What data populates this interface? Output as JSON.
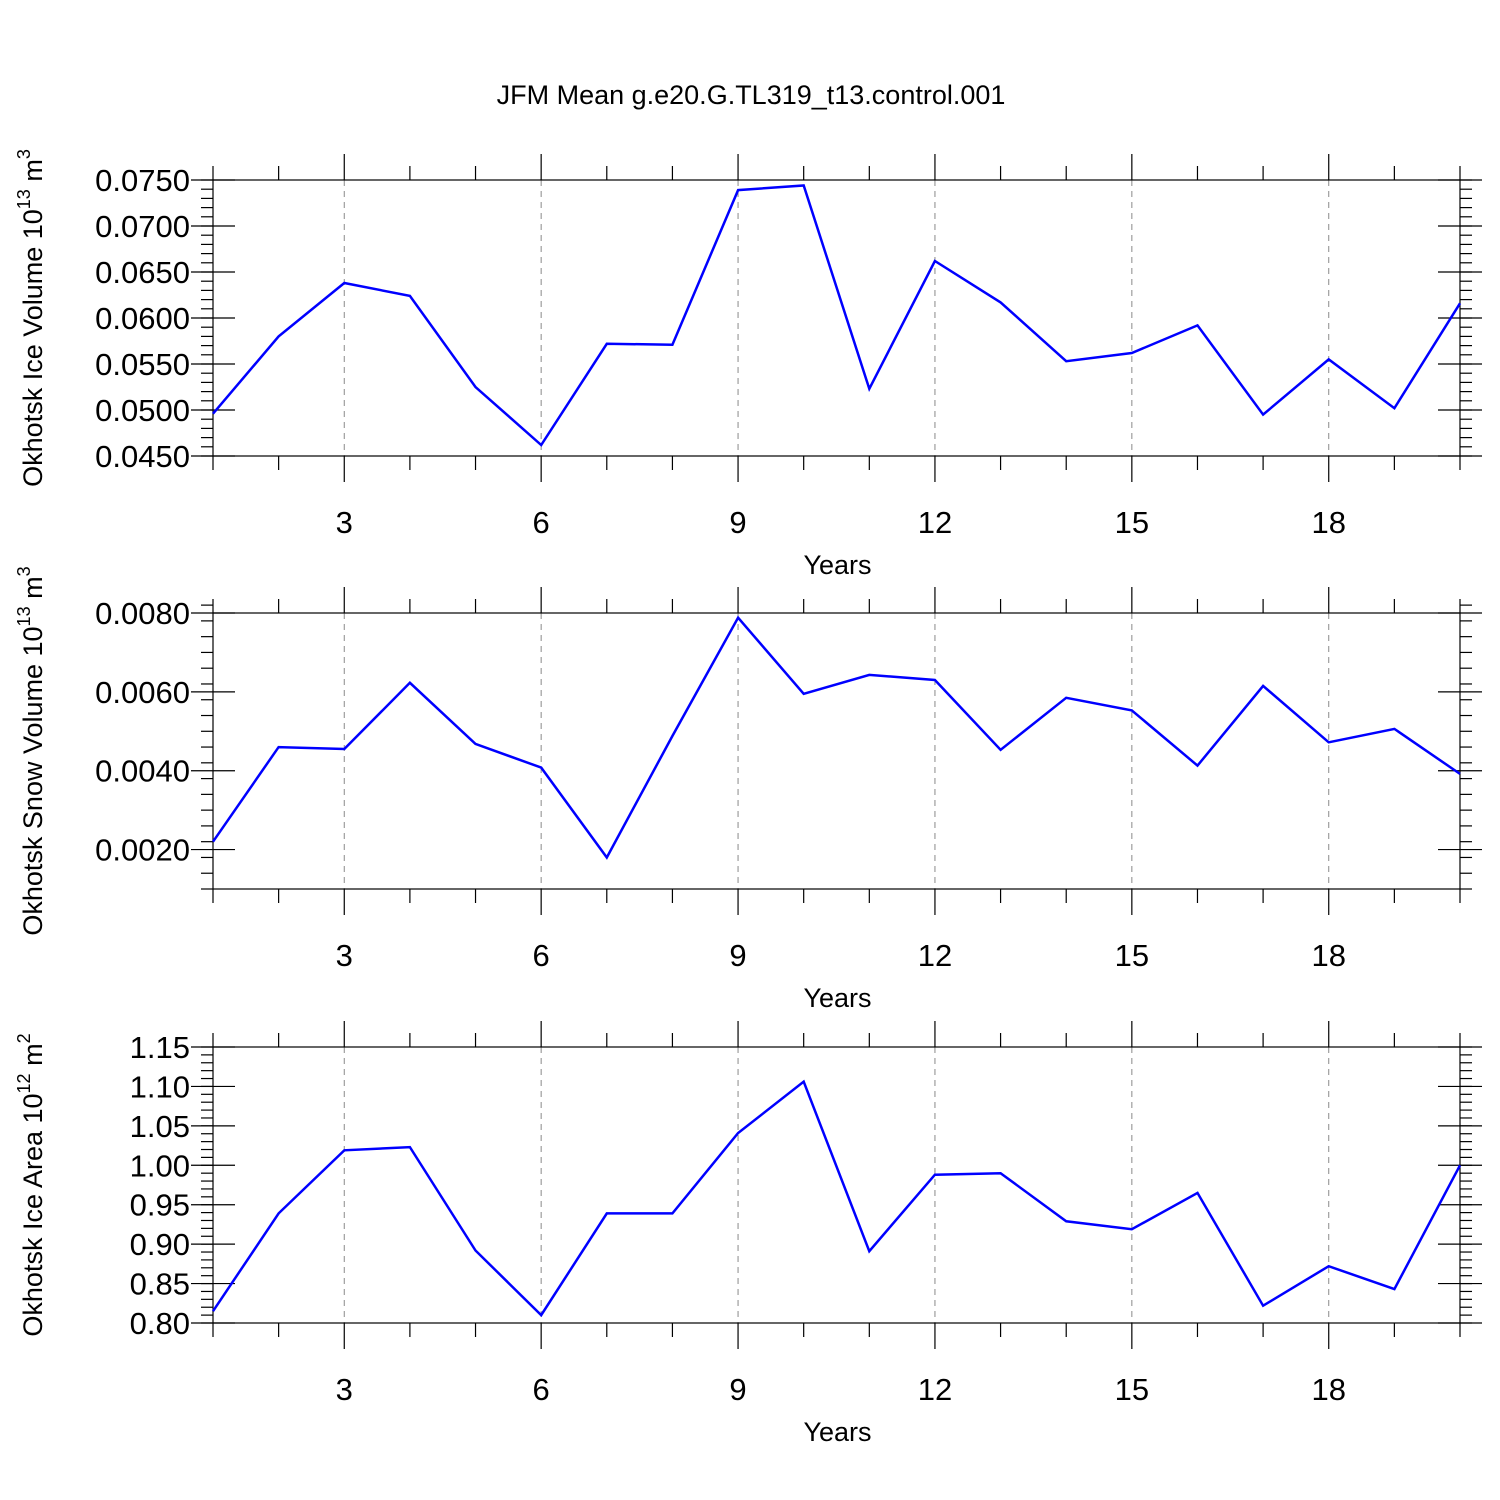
{
  "title": "JFM Mean g.e20.G.TL319_t13.control.001",
  "line_color": "#0000ff",
  "chart_data": [
    {
      "type": "line",
      "title": "JFM Mean g.e20.G.TL319_t13.control.001",
      "xlabel": "Years",
      "ylabel": {
        "base": "Okhotsk Ice Volume 10",
        "exp1": "13",
        "unit": " m",
        "exp2": "3"
      },
      "x": [
        1,
        2,
        3,
        4,
        5,
        6,
        7,
        8,
        9,
        10,
        11,
        12,
        13,
        14,
        15,
        16,
        17,
        18,
        19,
        20
      ],
      "values": [
        0.0496,
        0.058,
        0.0638,
        0.0624,
        0.0525,
        0.0462,
        0.0572,
        0.0571,
        0.0739,
        0.0744,
        0.0523,
        0.0662,
        0.0617,
        0.0553,
        0.0562,
        0.0592,
        0.0495,
        0.0555,
        0.0502,
        0.0616
      ],
      "xlim": [
        1,
        20
      ],
      "ylim": [
        0.045,
        0.075
      ],
      "xticks": [
        3,
        6,
        9,
        12,
        15,
        18
      ],
      "xtick_labels": [
        "3",
        "6",
        "9",
        "12",
        "15",
        "18"
      ],
      "yticks": [
        0.045,
        0.05,
        0.055,
        0.06,
        0.065,
        0.07,
        0.075
      ],
      "ytick_labels": [
        "0.0450",
        "0.0500",
        "0.0550",
        "0.0600",
        "0.0650",
        "0.0700",
        "0.0750"
      ],
      "y_minor_step": 0.001,
      "grid": "vertical dashed at major x ticks"
    },
    {
      "type": "line",
      "xlabel": "Years",
      "ylabel": {
        "base": "Okhotsk Snow Volume 10",
        "exp1": "13",
        "unit": " m",
        "exp2": "3"
      },
      "x": [
        1,
        2,
        3,
        4,
        5,
        6,
        7,
        8,
        9,
        10,
        11,
        12,
        13,
        14,
        15,
        16,
        17,
        18,
        19,
        20
      ],
      "values": [
        0.0022,
        0.0046,
        0.00455,
        0.00623,
        0.00468,
        0.00408,
        0.0018,
        0.00488,
        0.00788,
        0.00595,
        0.00643,
        0.0063,
        0.00453,
        0.00585,
        0.00553,
        0.00413,
        0.00615,
        0.00472,
        0.00506,
        0.00392
      ],
      "xlim": [
        1,
        20
      ],
      "ylim": [
        0.001,
        0.008
      ],
      "xticks": [
        3,
        6,
        9,
        12,
        15,
        18
      ],
      "xtick_labels": [
        "3",
        "6",
        "9",
        "12",
        "15",
        "18"
      ],
      "yticks": [
        0.002,
        0.004,
        0.006,
        0.008
      ],
      "ytick_labels": [
        "0.0020",
        "0.0040",
        "0.0060",
        "0.0080"
      ],
      "y_minor_step": 0.0004,
      "grid": "vertical dashed at major x ticks"
    },
    {
      "type": "line",
      "xlabel": "Years",
      "ylabel": {
        "base": "Okhotsk Ice Area 10",
        "exp1": "12",
        "unit": " m",
        "exp2": "2"
      },
      "x": [
        1,
        2,
        3,
        4,
        5,
        6,
        7,
        8,
        9,
        10,
        11,
        12,
        13,
        14,
        15,
        16,
        17,
        18,
        19,
        20
      ],
      "values": [
        0.815,
        0.939,
        1.019,
        1.023,
        0.892,
        0.81,
        0.939,
        0.939,
        1.041,
        1.106,
        0.891,
        0.988,
        0.99,
        0.929,
        0.919,
        0.965,
        0.822,
        0.872,
        0.843,
        1.0
      ],
      "xlim": [
        1,
        20
      ],
      "ylim": [
        0.8,
        1.15
      ],
      "xticks": [
        3,
        6,
        9,
        12,
        15,
        18
      ],
      "xtick_labels": [
        "3",
        "6",
        "9",
        "12",
        "15",
        "18"
      ],
      "yticks": [
        0.8,
        0.85,
        0.9,
        0.95,
        1.0,
        1.05,
        1.1,
        1.15
      ],
      "ytick_labels": [
        "0.80",
        "0.85",
        "0.90",
        "0.95",
        "1.00",
        "1.05",
        "1.10",
        "1.15"
      ],
      "y_minor_step": 0.01,
      "grid": "vertical dashed at major x ticks"
    }
  ]
}
